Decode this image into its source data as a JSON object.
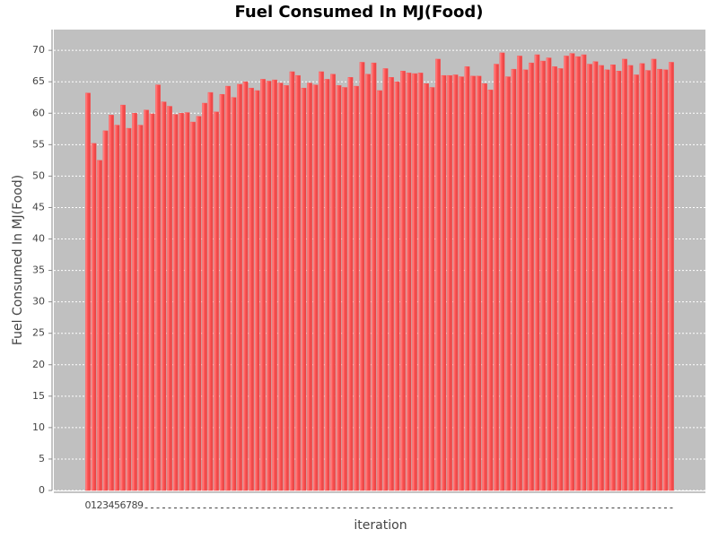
{
  "chart_data": {
    "type": "bar",
    "title": "Fuel Consumed In MJ(Food)",
    "x_label": "iteration",
    "y_label": "Fuel Consumed In MJ(Food)",
    "categories": [
      "0",
      "1",
      "2",
      "3",
      "4",
      "5",
      "6",
      "7",
      "8",
      "9",
      null,
      null,
      null,
      null,
      null,
      null,
      null,
      null,
      null,
      null,
      null,
      null,
      null,
      null,
      null,
      null,
      null,
      null,
      null,
      null,
      null,
      null,
      null,
      null,
      null,
      null,
      null,
      null,
      null,
      null,
      null,
      null,
      null,
      null,
      null,
      null,
      null,
      null,
      null,
      null,
      null,
      null,
      null,
      null,
      null,
      null,
      null,
      null,
      null,
      null,
      null,
      null,
      null,
      null,
      null,
      null,
      null,
      null,
      null,
      null,
      null,
      null,
      null,
      null,
      null,
      null,
      null,
      null,
      null,
      null,
      null,
      null,
      null,
      null,
      null,
      null,
      null,
      null,
      null,
      null,
      null,
      null,
      null,
      null,
      null,
      null,
      null,
      null,
      null,
      null,
      null
    ],
    "values": [
      63.2,
      55.2,
      52.5,
      57.2,
      59.7,
      58.1,
      61.3,
      57.6,
      60.0,
      58.1,
      60.5,
      59.9,
      64.5,
      61.8,
      61.1,
      59.8,
      60.0,
      60.1,
      58.6,
      59.5,
      61.6,
      63.3,
      60.2,
      63.0,
      64.3,
      62.5,
      64.6,
      65.0,
      64.0,
      63.6,
      65.4,
      65.1,
      65.3,
      64.8,
      64.4,
      66.6,
      66.0,
      64.0,
      64.8,
      64.5,
      66.6,
      65.4,
      66.2,
      64.4,
      64.1,
      65.7,
      64.3,
      68.1,
      66.2,
      68.0,
      63.6,
      67.1,
      65.7,
      65.0,
      66.7,
      66.4,
      66.3,
      66.4,
      64.7,
      64.1,
      68.6,
      66.0,
      66.0,
      66.1,
      65.8,
      67.4,
      65.9,
      65.9,
      64.7,
      63.7,
      67.8,
      69.6,
      65.8,
      67.0,
      69.1,
      66.9,
      68.0,
      69.3,
      68.3,
      68.8,
      67.4,
      67.1,
      69.1,
      69.5,
      69.0,
      69.3,
      67.8,
      68.2,
      67.6,
      66.9,
      67.7,
      66.7,
      68.6,
      67.6,
      66.1,
      67.9,
      66.8,
      68.6,
      67.0,
      66.9,
      68.1
    ],
    "color": "#ff5555",
    "ylim": [
      0,
      73.3
    ],
    "yticks": [
      0,
      5,
      10,
      15,
      20,
      25,
      30,
      35,
      40,
      45,
      50,
      55,
      60,
      65,
      70
    ],
    "grid": true
  }
}
